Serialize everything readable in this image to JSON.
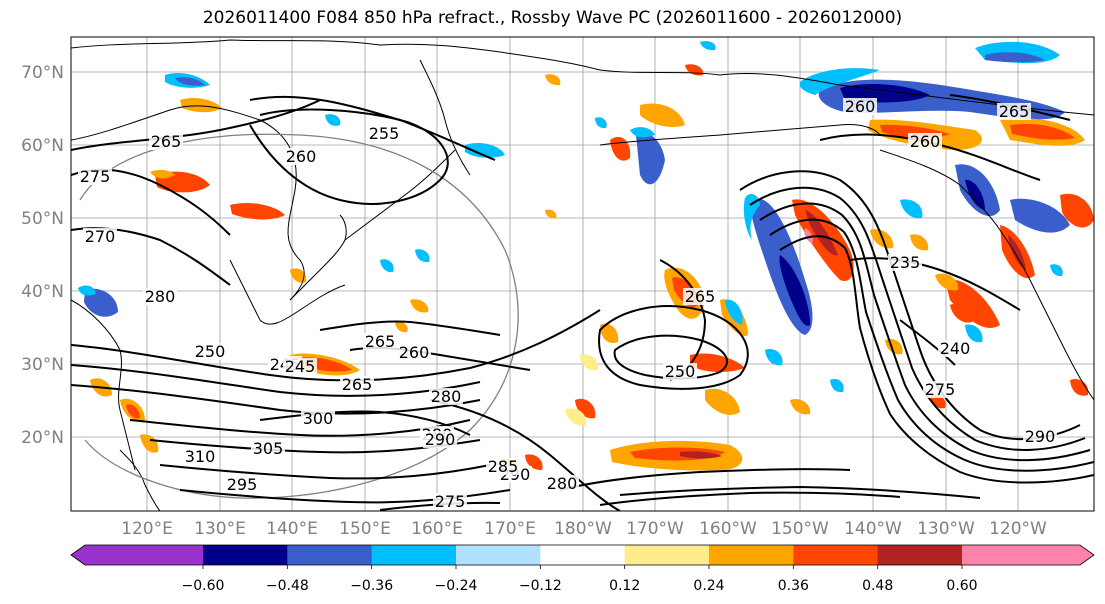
{
  "title": "2026011400 F084 850 hPa refract., Rossby Wave PC (2026011600 - 2026012000)",
  "lat_labels": [
    "70°N",
    "60°N",
    "50°N",
    "40°N",
    "30°N",
    "20°N"
  ],
  "lon_labels": [
    "120°E",
    "130°E",
    "140°E",
    "150°E",
    "160°E",
    "170°E",
    "180°W",
    "170°W",
    "160°W",
    "150°W",
    "140°W",
    "130°W",
    "120°W"
  ],
  "contour_labels": [
    "265",
    "255",
    "260",
    "275",
    "270",
    "280",
    "250",
    "245",
    "265",
    "260",
    "265",
    "280",
    "300",
    "280",
    "305",
    "310",
    "295",
    "290",
    "280",
    "290",
    "285",
    "275",
    "265",
    "235",
    "240",
    "275",
    "290",
    "260",
    "265",
    "260",
    "250",
    "245"
  ],
  "colorbar": {
    "tick_labels": [
      "−0.60",
      "−0.48",
      "−0.36",
      "−0.24",
      "−0.12",
      "0.12",
      "0.24",
      "0.36",
      "0.48",
      "0.60"
    ],
    "colors": [
      "#9932CC",
      "#00008B",
      "#3A5FCD",
      "#00BFFF",
      "#B0E2FF",
      "#FFFFFF",
      "#FFEC8B",
      "#FFA500",
      "#FF4500",
      "#B22222",
      "#FF82AB"
    ]
  },
  "shading_colors": {
    "strong_neg": "#00008B",
    "mid_neg": "#3A5FCD",
    "weak_neg": "#00BFFF",
    "faint_neg": "#B0E2FF",
    "faint_pos": "#FFEC8B",
    "weak_pos": "#FFA500",
    "mid_pos": "#FF4500",
    "strong_pos": "#B22222",
    "extreme_pos": "#FF82AB"
  }
}
